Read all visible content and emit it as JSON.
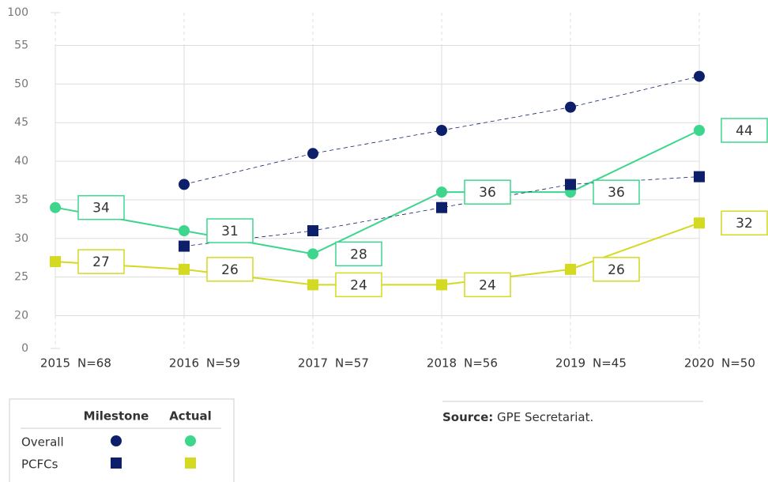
{
  "chart_data": {
    "type": "line",
    "categories": [
      "2015",
      "2016",
      "2017",
      "2018",
      "2019",
      "2020"
    ],
    "n_labels": [
      "N=68",
      "N=59",
      "N=57",
      "N=56",
      "N=45",
      "N=50"
    ],
    "ylim": [
      0,
      100
    ],
    "yticks": [
      0,
      20,
      25,
      30,
      35,
      40,
      45,
      50,
      55,
      100
    ],
    "grid": true,
    "series": [
      {
        "name": "Overall",
        "variant": "Milestone",
        "color": "#0d1f6b",
        "marker": "circle",
        "dashed": true,
        "values": [
          null,
          37,
          41,
          44,
          47,
          51
        ]
      },
      {
        "name": "Overall",
        "variant": "Actual",
        "color": "#3dd68c",
        "marker": "circle",
        "dashed": false,
        "values": [
          34,
          31,
          28,
          36,
          36,
          44
        ]
      },
      {
        "name": "PCFCs",
        "variant": "Milestone",
        "color": "#0d1f6b",
        "marker": "square",
        "dashed": true,
        "values": [
          null,
          29,
          31,
          34,
          37,
          38
        ]
      },
      {
        "name": "PCFCs",
        "variant": "Actual",
        "color": "#d4d921",
        "marker": "square",
        "dashed": false,
        "values": [
          27,
          26,
          24,
          24,
          26,
          32
        ]
      }
    ],
    "value_label_series": [
      1,
      3
    ],
    "source_label": "Source:",
    "source_text": "GPE Secretariat."
  }
}
